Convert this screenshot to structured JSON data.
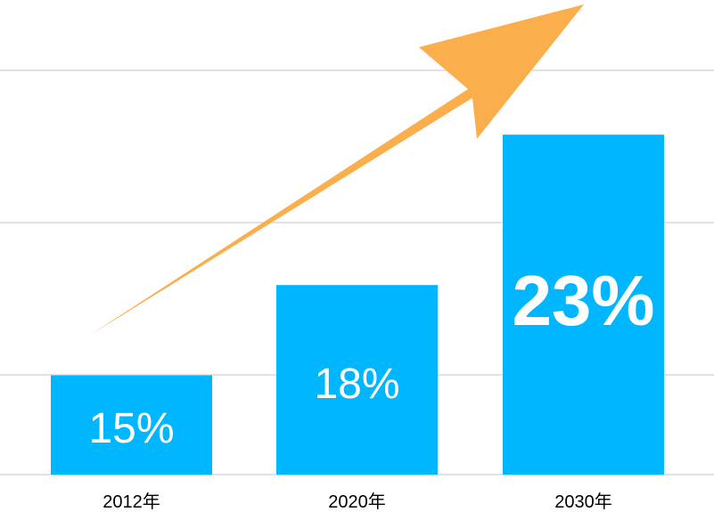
{
  "chart_data": {
    "type": "bar",
    "categories": [
      "2012年",
      "2020年",
      "2030年"
    ],
    "values": [
      15,
      18,
      23
    ],
    "data_labels": [
      "15%",
      "18%",
      "23%"
    ],
    "title": "",
    "xlabel": "",
    "ylabel": "",
    "ylim": [
      11.7,
      25.7
    ],
    "yticks": [
      11.7,
      14.9,
      20,
      25
    ],
    "grid": true,
    "legend": "none",
    "annotations": [
      {
        "type": "trend-arrow",
        "direction": "up-right",
        "color": "#fbae4c"
      }
    ],
    "colors": {
      "bar": "#00b6ff",
      "arrow": "#fbae4c",
      "grid": "#d9d9d9",
      "bar_label": "#ffffff",
      "tick_label": "#000000"
    }
  }
}
